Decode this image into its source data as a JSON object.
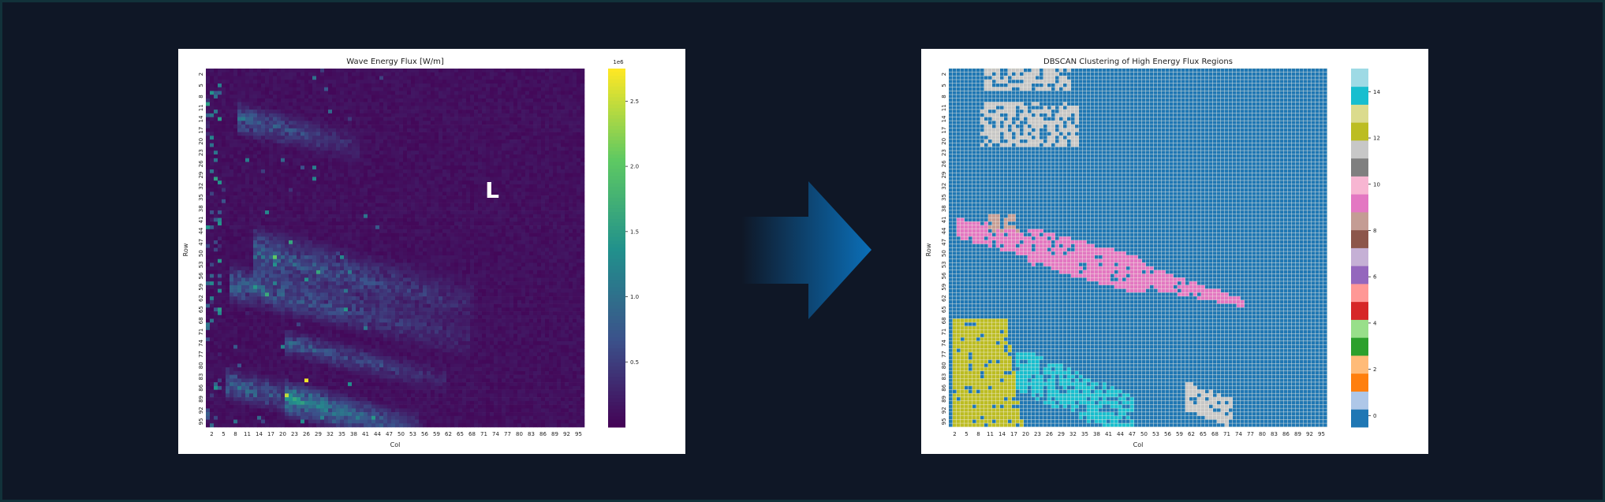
{
  "arrow_color": "#0b6fb8",
  "chart_data": [
    {
      "type": "heatmap",
      "title": "Wave Energy Flux [W/m]",
      "xlabel": "Col",
      "ylabel": "Row",
      "colormap": "viridis",
      "grid_size": [
        96,
        96
      ],
      "x_ticks": [
        "2",
        "5",
        "8",
        "11",
        "14",
        "17",
        "20",
        "23",
        "26",
        "29",
        "32",
        "35",
        "38",
        "41",
        "44",
        "47",
        "50",
        "53",
        "56",
        "59",
        "62",
        "65",
        "68",
        "71",
        "74",
        "77",
        "80",
        "83",
        "86",
        "89",
        "92",
        "95"
      ],
      "y_ticks": [
        "2",
        "5",
        "8",
        "11",
        "14",
        "17",
        "20",
        "23",
        "26",
        "29",
        "32",
        "35",
        "38",
        "41",
        "44",
        "47",
        "50",
        "53",
        "56",
        "59",
        "62",
        "65",
        "68",
        "71",
        "74",
        "77",
        "80",
        "83",
        "86",
        "89",
        "92",
        "95"
      ],
      "colorbar": {
        "multiplier_label": "1e6",
        "tick_labels": [
          "2.5",
          "2.0",
          "1.5",
          "1.0",
          "0.5"
        ],
        "range": [
          0,
          2.75
        ]
      },
      "annotation": "L",
      "notes": "Mostly low flux (deep purple) with brighter streaks toward the lower-left; peak value (~2.7e6) near col 25, row 83."
    },
    {
      "type": "heatmap",
      "title": "DBSCAN Clustering of High Energy Flux Regions",
      "xlabel": "Col",
      "ylabel": "Row",
      "colormap": "tab20",
      "grid_size": [
        96,
        96
      ],
      "x_ticks": [
        "2",
        "5",
        "8",
        "11",
        "14",
        "17",
        "20",
        "23",
        "26",
        "29",
        "32",
        "35",
        "38",
        "41",
        "44",
        "47",
        "50",
        "53",
        "56",
        "59",
        "62",
        "65",
        "68",
        "71",
        "74",
        "77",
        "80",
        "83",
        "86",
        "89",
        "92",
        "95"
      ],
      "y_ticks": [
        "2",
        "5",
        "8",
        "11",
        "14",
        "17",
        "20",
        "23",
        "26",
        "29",
        "32",
        "35",
        "38",
        "41",
        "44",
        "47",
        "50",
        "53",
        "56",
        "59",
        "62",
        "65",
        "68",
        "71",
        "74",
        "77",
        "80",
        "83",
        "86",
        "89",
        "92",
        "95"
      ],
      "colorbar": {
        "tick_labels": [
          "14",
          "12",
          "10",
          "8",
          "6",
          "4",
          "2",
          "0"
        ],
        "range": [
          0,
          15
        ],
        "colors": [
          "#1f77b4",
          "#aec7e8",
          "#ff7f0e",
          "#ffbb78",
          "#2ca02c",
          "#98df8a",
          "#d62728",
          "#ff9896",
          "#9467bd",
          "#c5b0d5",
          "#8c564b",
          "#c49c94",
          "#e377c2",
          "#f7b6d2",
          "#7f7f7f",
          "#c7c7c7",
          "#bcbd22",
          "#dbdb8d",
          "#17becf",
          "#9edae5"
        ]
      },
      "clusters": [
        {
          "label": 0,
          "region": "background (all non-clustered cells)"
        },
        {
          "label": 9,
          "region": "small patch near rows 41-44, cols 10-17"
        },
        {
          "label": 10,
          "region": "elongated band rows 41-65, cols 2-74"
        },
        {
          "label": 11,
          "region": "upper-left patches rows 2-20, cols 8-32"
        },
        {
          "label": 11,
          "region": "lower-right patch rows 86-95, cols 61-71"
        },
        {
          "label": 12,
          "region": "left column block rows 68-98, cols 2-17"
        },
        {
          "label": 14,
          "region": "lower-middle patch rows 77-98, cols 17-47"
        }
      ]
    }
  ]
}
